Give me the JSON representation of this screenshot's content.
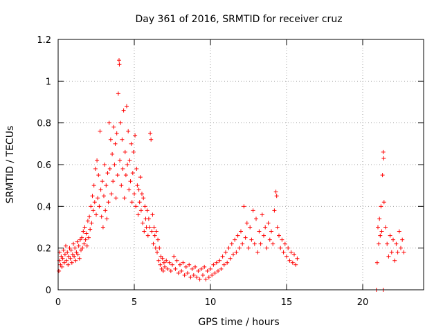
{
  "chart_data": {
    "type": "scatter",
    "title": "Day 361 of 2016, SRMTID for receiver cruz",
    "xlabel": "GPS time / hours",
    "ylabel": "SRMTID / TECUs",
    "xlim": [
      0,
      24
    ],
    "ylim": [
      0,
      1.2
    ],
    "xticks": [
      0,
      5,
      10,
      15,
      20
    ],
    "xtick_labels": [
      "0",
      "5",
      "10",
      "15",
      "20"
    ],
    "yticks": [
      0,
      0.2,
      0.4,
      0.6,
      0.8,
      1,
      1.2
    ],
    "ytick_labels": [
      "0",
      "0.2",
      "0.4",
      "0.6",
      "0.8",
      "1",
      "1.2"
    ],
    "grid": true,
    "marker": "+",
    "color": "#ff0000",
    "series": [
      {
        "name": "cruz",
        "points": [
          [
            0.05,
            0.09
          ],
          [
            0.08,
            0.14
          ],
          [
            0.1,
            0.18
          ],
          [
            0.15,
            0.12
          ],
          [
            0.2,
            0.16
          ],
          [
            0.25,
            0.11
          ],
          [
            0.3,
            0.15
          ],
          [
            0.35,
            0.19
          ],
          [
            0.4,
            0.13
          ],
          [
            0.45,
            0.17
          ],
          [
            0.5,
            0.21
          ],
          [
            0.55,
            0.14
          ],
          [
            0.6,
            0.18
          ],
          [
            0.65,
            0.12
          ],
          [
            0.7,
            0.16
          ],
          [
            0.75,
            0.2
          ],
          [
            0.8,
            0.15
          ],
          [
            0.85,
            0.19
          ],
          [
            0.9,
            0.13
          ],
          [
            0.95,
            0.17
          ],
          [
            1.0,
            0.22
          ],
          [
            1.05,
            0.16
          ],
          [
            1.1,
            0.2
          ],
          [
            1.15,
            0.14
          ],
          [
            1.2,
            0.18
          ],
          [
            1.25,
            0.23
          ],
          [
            1.3,
            0.17
          ],
          [
            1.35,
            0.21
          ],
          [
            1.4,
            0.15
          ],
          [
            1.45,
            0.24
          ],
          [
            1.5,
            0.19
          ],
          [
            1.55,
            0.25
          ],
          [
            1.6,
            0.2
          ],
          [
            1.65,
            0.28
          ],
          [
            1.7,
            0.22
          ],
          [
            1.75,
            0.3
          ],
          [
            1.8,
            0.24
          ],
          [
            1.85,
            0.27
          ],
          [
            1.9,
            0.21
          ],
          [
            1.95,
            0.33
          ],
          [
            2.0,
            0.25
          ],
          [
            2.05,
            0.35
          ],
          [
            2.1,
            0.29
          ],
          [
            2.15,
            0.4
          ],
          [
            2.2,
            0.32
          ],
          [
            2.25,
            0.45
          ],
          [
            2.3,
            0.38
          ],
          [
            2.35,
            0.5
          ],
          [
            2.4,
            0.42
          ],
          [
            2.45,
            0.58
          ],
          [
            2.5,
            0.36
          ],
          [
            2.55,
            0.62
          ],
          [
            2.6,
            0.44
          ],
          [
            2.65,
            0.55
          ],
          [
            2.7,
            0.4
          ],
          [
            2.75,
            0.76
          ],
          [
            2.8,
            0.48
          ],
          [
            2.85,
            0.35
          ],
          [
            2.9,
            0.52
          ],
          [
            2.95,
            0.3
          ],
          [
            3.0,
            0.45
          ],
          [
            3.05,
            0.6
          ],
          [
            3.1,
            0.38
          ],
          [
            3.15,
            0.5
          ],
          [
            3.2,
            0.34
          ],
          [
            3.25,
            0.56
          ],
          [
            3.3,
            0.42
          ],
          [
            3.35,
            0.8
          ],
          [
            3.4,
            0.58
          ],
          [
            3.45,
            0.72
          ],
          [
            3.5,
            0.46
          ],
          [
            3.55,
            0.65
          ],
          [
            3.6,
            0.52
          ],
          [
            3.65,
            0.78
          ],
          [
            3.7,
            0.6
          ],
          [
            3.75,
            0.7
          ],
          [
            3.8,
            0.44
          ],
          [
            3.85,
            0.75
          ],
          [
            3.9,
            0.55
          ],
          [
            3.95,
            0.94
          ],
          [
            4.0,
            1.1
          ],
          [
            4.02,
            1.08
          ],
          [
            4.05,
            0.62
          ],
          [
            4.1,
            0.8
          ],
          [
            4.15,
            0.5
          ],
          [
            4.2,
            0.72
          ],
          [
            4.25,
            0.58
          ],
          [
            4.3,
            0.86
          ],
          [
            4.35,
            0.44
          ],
          [
            4.4,
            0.66
          ],
          [
            4.45,
            0.55
          ],
          [
            4.5,
            0.88
          ],
          [
            4.55,
            0.6
          ],
          [
            4.6,
            0.76
          ],
          [
            4.65,
            0.48
          ],
          [
            4.7,
            0.62
          ],
          [
            4.75,
            0.52
          ],
          [
            4.8,
            0.7
          ],
          [
            4.85,
            0.42
          ],
          [
            4.9,
            0.56
          ],
          [
            4.95,
            0.66
          ],
          [
            5.0,
            0.46
          ],
          [
            5.05,
            0.74
          ],
          [
            5.1,
            0.4
          ],
          [
            5.15,
            0.58
          ],
          [
            5.2,
            0.5
          ],
          [
            5.25,
            0.36
          ],
          [
            5.3,
            0.48
          ],
          [
            5.35,
            0.42
          ],
          [
            5.4,
            0.54
          ],
          [
            5.45,
            0.38
          ],
          [
            5.5,
            0.46
          ],
          [
            5.55,
            0.32
          ],
          [
            5.6,
            0.44
          ],
          [
            5.65,
            0.28
          ],
          [
            5.7,
            0.4
          ],
          [
            5.75,
            0.34
          ],
          [
            5.8,
            0.3
          ],
          [
            5.85,
            0.38
          ],
          [
            5.9,
            0.26
          ],
          [
            5.95,
            0.34
          ],
          [
            6.0,
            0.3
          ],
          [
            6.05,
            0.75
          ],
          [
            6.1,
            0.72
          ],
          [
            6.15,
            0.28
          ],
          [
            6.2,
            0.36
          ],
          [
            6.25,
            0.22
          ],
          [
            6.3,
            0.3
          ],
          [
            6.35,
            0.26
          ],
          [
            6.4,
            0.2
          ],
          [
            6.45,
            0.28
          ],
          [
            6.5,
            0.18
          ],
          [
            6.55,
            0.24
          ],
          [
            6.6,
            0.14
          ],
          [
            6.65,
            0.2
          ],
          [
            6.7,
            0.12
          ],
          [
            6.75,
            0.16
          ],
          [
            6.8,
            0.1
          ],
          [
            6.85,
            0.15
          ],
          [
            6.9,
            0.09
          ],
          [
            6.95,
            0.13
          ],
          [
            7.0,
            0.11
          ],
          [
            7.1,
            0.14
          ],
          [
            7.2,
            0.1
          ],
          [
            7.3,
            0.13
          ],
          [
            7.4,
            0.09
          ],
          [
            7.5,
            0.12
          ],
          [
            7.6,
            0.16
          ],
          [
            7.7,
            0.1
          ],
          [
            7.8,
            0.14
          ],
          [
            7.9,
            0.08
          ],
          [
            8.0,
            0.12
          ],
          [
            8.1,
            0.09
          ],
          [
            8.2,
            0.13
          ],
          [
            8.3,
            0.07
          ],
          [
            8.4,
            0.11
          ],
          [
            8.5,
            0.08
          ],
          [
            8.6,
            0.12
          ],
          [
            8.7,
            0.06
          ],
          [
            8.8,
            0.1
          ],
          [
            8.9,
            0.07
          ],
          [
            9.0,
            0.11
          ],
          [
            9.1,
            0.06
          ],
          [
            9.2,
            0.09
          ],
          [
            9.3,
            0.05
          ],
          [
            9.4,
            0.1
          ],
          [
            9.5,
            0.07
          ],
          [
            9.6,
            0.11
          ],
          [
            9.7,
            0.05
          ],
          [
            9.8,
            0.09
          ],
          [
            9.9,
            0.06
          ],
          [
            10.0,
            0.1
          ],
          [
            10.1,
            0.07
          ],
          [
            10.2,
            0.12
          ],
          [
            10.3,
            0.08
          ],
          [
            10.4,
            0.13
          ],
          [
            10.5,
            0.09
          ],
          [
            10.6,
            0.14
          ],
          [
            10.7,
            0.1
          ],
          [
            10.8,
            0.16
          ],
          [
            10.9,
            0.12
          ],
          [
            11.0,
            0.18
          ],
          [
            11.1,
            0.13
          ],
          [
            11.2,
            0.2
          ],
          [
            11.3,
            0.15
          ],
          [
            11.4,
            0.22
          ],
          [
            11.5,
            0.17
          ],
          [
            11.6,
            0.24
          ],
          [
            11.7,
            0.18
          ],
          [
            11.8,
            0.26
          ],
          [
            11.9,
            0.2
          ],
          [
            12.0,
            0.28
          ],
          [
            12.1,
            0.22
          ],
          [
            12.2,
            0.4
          ],
          [
            12.3,
            0.25
          ],
          [
            12.4,
            0.32
          ],
          [
            12.5,
            0.2
          ],
          [
            12.6,
            0.3
          ],
          [
            12.7,
            0.24
          ],
          [
            12.8,
            0.38
          ],
          [
            12.9,
            0.22
          ],
          [
            13.0,
            0.34
          ],
          [
            13.1,
            0.18
          ],
          [
            13.2,
            0.28
          ],
          [
            13.3,
            0.22
          ],
          [
            13.4,
            0.36
          ],
          [
            13.5,
            0.26
          ],
          [
            13.6,
            0.3
          ],
          [
            13.7,
            0.2
          ],
          [
            13.8,
            0.32
          ],
          [
            13.9,
            0.24
          ],
          [
            14.0,
            0.28
          ],
          [
            14.1,
            0.22
          ],
          [
            14.2,
            0.38
          ],
          [
            14.3,
            0.47
          ],
          [
            14.35,
            0.45
          ],
          [
            14.4,
            0.3
          ],
          [
            14.5,
            0.26
          ],
          [
            14.6,
            0.2
          ],
          [
            14.7,
            0.24
          ],
          [
            14.8,
            0.18
          ],
          [
            14.9,
            0.22
          ],
          [
            15.0,
            0.16
          ],
          [
            15.1,
            0.2
          ],
          [
            15.2,
            0.14
          ],
          [
            15.3,
            0.18
          ],
          [
            15.4,
            0.13
          ],
          [
            15.5,
            0.17
          ],
          [
            15.6,
            0.12
          ],
          [
            15.7,
            0.15
          ],
          [
            20.9,
            0.0
          ],
          [
            21.35,
            0.0
          ],
          [
            20.95,
            0.13
          ],
          [
            21.0,
            0.3
          ],
          [
            21.05,
            0.22
          ],
          [
            21.1,
            0.34
          ],
          [
            21.15,
            0.26
          ],
          [
            21.2,
            0.4
          ],
          [
            21.25,
            0.28
          ],
          [
            21.3,
            0.55
          ],
          [
            21.35,
            0.66
          ],
          [
            21.38,
            0.63
          ],
          [
            21.4,
            0.42
          ],
          [
            21.5,
            0.3
          ],
          [
            21.6,
            0.22
          ],
          [
            21.7,
            0.16
          ],
          [
            21.8,
            0.26
          ],
          [
            21.9,
            0.18
          ],
          [
            22.0,
            0.24
          ],
          [
            22.1,
            0.14
          ],
          [
            22.2,
            0.22
          ],
          [
            22.3,
            0.18
          ],
          [
            22.4,
            0.28
          ],
          [
            22.5,
            0.2
          ],
          [
            22.6,
            0.24
          ],
          [
            22.7,
            0.18
          ]
        ]
      }
    ]
  }
}
